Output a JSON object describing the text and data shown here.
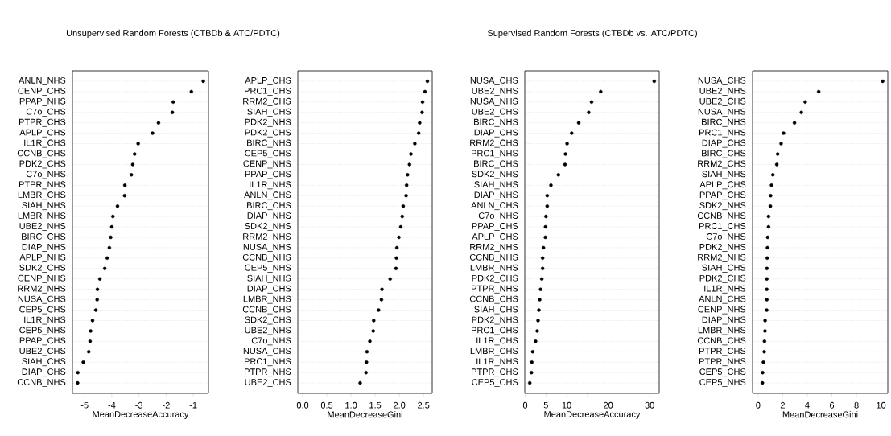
{
  "chart_data": [
    {
      "type": "scatter",
      "orientation": "horizontal",
      "title": "Unsupervised Random Forests (CTBDb & ATC/PDTC)",
      "xlabel": "MeanDecreaseAccuracy",
      "color": "#000000",
      "marker": "circle",
      "grid": "y",
      "categories": [
        "ANLN_NHS",
        "CENP_CHS",
        "PPAP_NHS",
        "C7o_CHS",
        "PTPR_CHS",
        "APLP_CHS",
        "IL1R_CHS",
        "CCNB_CHS",
        "PDK2_CHS",
        "C7o_NHS",
        "PTPR_NHS",
        "LMBR_CHS",
        "SIAH_NHS",
        "LMBR_NHS",
        "UBE2_NHS",
        "BIRC_CHS",
        "DIAP_NHS",
        "APLP_NHS",
        "SDK2_CHS",
        "CENP_NHS",
        "RRM2_NHS",
        "NUSA_CHS",
        "CEP5_CHS",
        "IL1R_NHS",
        "CEP5_NHS",
        "PPAP_CHS",
        "UBE2_CHS",
        "SIAH_CHS",
        "DIAP_CHS",
        "CCNB_NHS"
      ],
      "values": [
        -0.63,
        -1.07,
        -1.74,
        -1.77,
        -2.28,
        -2.5,
        -3.03,
        -3.16,
        -3.23,
        -3.28,
        -3.52,
        -3.53,
        -3.79,
        -3.96,
        -4.0,
        -4.04,
        -4.09,
        -4.17,
        -4.26,
        -4.44,
        -4.53,
        -4.54,
        -4.59,
        -4.71,
        -4.78,
        -4.8,
        -4.85,
        -5.05,
        -5.25,
        -5.26
      ],
      "xlim": [
        -5.45,
        -0.44
      ],
      "xticks": [
        -5,
        -4,
        -3,
        -2,
        -1
      ]
    },
    {
      "type": "scatter",
      "orientation": "horizontal",
      "xlabel": "MeanDecreaseGini",
      "color": "#000000",
      "marker": "circle",
      "grid": "y",
      "categories": [
        "APLP_CHS",
        "PRC1_CHS",
        "RRM2_CHS",
        "SIAH_CHS",
        "PDK2_NHS",
        "PDK2_CHS",
        "BIRC_NHS",
        "CEP5_CHS",
        "CENP_NHS",
        "PPAP_CHS",
        "IL1R_NHS",
        "ANLN_CHS",
        "BIRC_CHS",
        "DIAP_NHS",
        "SDK2_NHS",
        "RRM2_NHS",
        "NUSA_NHS",
        "CCNB_NHS",
        "CEP5_NHS",
        "SIAH_NHS",
        "DIAP_CHS",
        "LMBR_NHS",
        "CCNB_CHS",
        "SDK2_CHS",
        "UBE2_NHS",
        "C7o_NHS",
        "NUSA_CHS",
        "PRC1_NHS",
        "PTPR_NHS",
        "UBE2_CHS"
      ],
      "values": [
        2.58,
        2.53,
        2.48,
        2.47,
        2.42,
        2.4,
        2.32,
        2.24,
        2.21,
        2.17,
        2.15,
        2.14,
        2.08,
        2.06,
        2.03,
        1.99,
        1.95,
        1.94,
        1.93,
        1.81,
        1.64,
        1.63,
        1.57,
        1.47,
        1.46,
        1.39,
        1.33,
        1.32,
        1.31,
        1.19
      ],
      "xlim": [
        -0.1,
        2.68
      ],
      "xticks": [
        {
          "value": 0,
          "label": "0.0"
        },
        {
          "value": 0.5,
          "label": "0.5"
        },
        {
          "value": 1,
          "label": "1.0"
        },
        {
          "value": 1.5,
          "label": "1.5"
        },
        {
          "value": 2,
          "label": "2.0"
        },
        {
          "value": 2.5,
          "label": "2.5"
        }
      ]
    },
    {
      "type": "scatter",
      "orientation": "horizontal",
      "title": "Supervised Random Forests (CTBDb vs. ATC/PDTC)",
      "xlabel": "MeanDecreaseAccuracy",
      "color": "#000000",
      "marker": "circle",
      "grid": "y",
      "categories": [
        "NUSA_CHS",
        "UBE2_NHS",
        "NUSA_NHS",
        "UBE2_CHS",
        "BIRC_NHS",
        "DIAP_CHS",
        "RRM2_CHS",
        "PRC1_NHS",
        "BIRC_CHS",
        "SDK2_NHS",
        "SIAH_NHS",
        "DIAP_NHS",
        "ANLN_CHS",
        "C7o_NHS",
        "PPAP_CHS",
        "APLP_CHS",
        "RRM2_NHS",
        "CCNB_NHS",
        "LMBR_NHS",
        "PDK2_CHS",
        "PTPR_NHS",
        "CCNB_CHS",
        "SIAH_CHS",
        "PDK2_NHS",
        "PRC1_CHS",
        "IL1R_CHS",
        "LMBR_CHS",
        "IL1R_NHS",
        "PTPR_CHS",
        "CEP5_CHS"
      ],
      "values": [
        31.1,
        18.2,
        16.0,
        15.3,
        12.9,
        11.2,
        10.1,
        9.7,
        9.6,
        8.0,
        6.2,
        5.3,
        5.3,
        5.0,
        4.9,
        4.85,
        4.4,
        4.2,
        4.2,
        4.0,
        3.7,
        3.5,
        3.3,
        3.1,
        2.9,
        2.5,
        1.8,
        1.6,
        1.5,
        1.1
      ],
      "xlim": [
        -0.1,
        32.3
      ],
      "xticks": [
        0,
        5,
        10,
        {
          "value": 15,
          "label": null
        },
        20,
        {
          "value": 25,
          "label": null
        },
        30
      ]
    },
    {
      "type": "scatter",
      "orientation": "horizontal",
      "xlabel": "MeanDecreaseGini",
      "color": "#000000",
      "marker": "circle",
      "grid": "y",
      "categories": [
        "NUSA_CHS",
        "UBE2_NHS",
        "UBE2_CHS",
        "NUSA_NHS",
        "BIRC_NHS",
        "PRC1_NHS",
        "DIAP_CHS",
        "BIRC_CHS",
        "RRM2_CHS",
        "SIAH_NHS",
        "APLP_CHS",
        "PPAP_CHS",
        "SDK2_NHS",
        "CCNB_NHS",
        "PRC1_CHS",
        "C7o_NHS",
        "PDK2_NHS",
        "RRM2_NHS",
        "SIAH_CHS",
        "PDK2_CHS",
        "IL1R_NHS",
        "ANLN_CHS",
        "CENP_NHS",
        "DIAP_NHS",
        "LMBR_NHS",
        "CCNB_CHS",
        "PTPR_CHS",
        "PTPR_NHS",
        "CEP5_CHS",
        "CEP5_NHS"
      ],
      "values": [
        10.13,
        4.93,
        3.83,
        3.52,
        2.96,
        2.07,
        1.87,
        1.59,
        1.52,
        1.2,
        1.09,
        1.02,
        1.0,
        0.85,
        0.85,
        0.78,
        0.76,
        0.74,
        0.72,
        0.71,
        0.71,
        0.71,
        0.7,
        0.57,
        0.56,
        0.52,
        0.5,
        0.43,
        0.37,
        0.35
      ],
      "xlim": [
        -0.45,
        10.55
      ],
      "xticks": [
        0,
        2,
        4,
        6,
        8,
        10
      ]
    }
  ]
}
